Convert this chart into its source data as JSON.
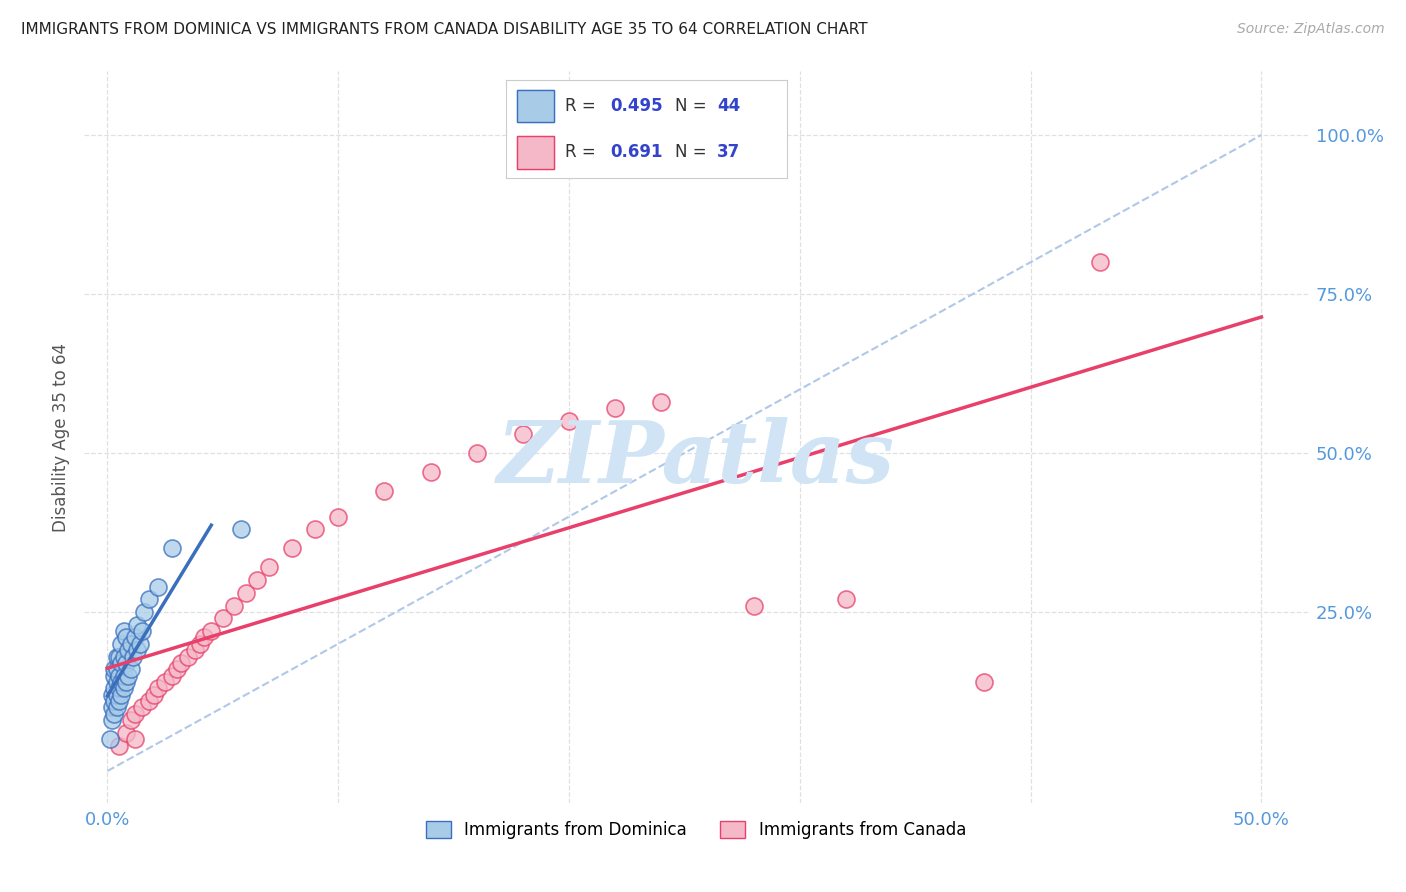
{
  "title": "IMMIGRANTS FROM DOMINICA VS IMMIGRANTS FROM CANADA DISABILITY AGE 35 TO 64 CORRELATION CHART",
  "source": "Source: ZipAtlas.com",
  "ylabel": "Disability Age 35 to 64",
  "xlim": [
    -0.01,
    0.52
  ],
  "ylim": [
    -0.05,
    1.1
  ],
  "R_dominica": 0.495,
  "N_dominica": 44,
  "R_canada": 0.691,
  "N_canada": 37,
  "color_dominica": "#a8cce8",
  "color_canada": "#f4b8c8",
  "trend_color_dominica": "#3a6fbd",
  "trend_color_canada": "#e8406a",
  "diagonal_color": "#b0c8e8",
  "background_color": "#ffffff",
  "grid_color": "#e0e0e0",
  "title_color": "#222222",
  "axis_tick_color": "#5599dd",
  "watermark_color": "#d0e4f5",
  "dominica_x": [
    0.001,
    0.002,
    0.002,
    0.002,
    0.003,
    0.003,
    0.003,
    0.003,
    0.003,
    0.004,
    0.004,
    0.004,
    0.004,
    0.004,
    0.005,
    0.005,
    0.005,
    0.005,
    0.006,
    0.006,
    0.006,
    0.006,
    0.007,
    0.007,
    0.007,
    0.007,
    0.008,
    0.008,
    0.008,
    0.009,
    0.009,
    0.01,
    0.01,
    0.011,
    0.012,
    0.013,
    0.013,
    0.014,
    0.015,
    0.016,
    0.018,
    0.022,
    0.028,
    0.058
  ],
  "dominica_y": [
    0.05,
    0.08,
    0.1,
    0.12,
    0.09,
    0.11,
    0.13,
    0.15,
    0.16,
    0.1,
    0.12,
    0.14,
    0.16,
    0.18,
    0.11,
    0.13,
    0.15,
    0.18,
    0.12,
    0.14,
    0.17,
    0.2,
    0.13,
    0.15,
    0.18,
    0.22,
    0.14,
    0.17,
    0.21,
    0.15,
    0.19,
    0.16,
    0.2,
    0.18,
    0.21,
    0.19,
    0.23,
    0.2,
    0.22,
    0.25,
    0.27,
    0.29,
    0.35,
    0.38
  ],
  "canada_x": [
    0.005,
    0.008,
    0.01,
    0.012,
    0.015,
    0.018,
    0.02,
    0.022,
    0.025,
    0.028,
    0.03,
    0.032,
    0.035,
    0.038,
    0.04,
    0.042,
    0.045,
    0.05,
    0.055,
    0.06,
    0.065,
    0.07,
    0.08,
    0.09,
    0.1,
    0.12,
    0.14,
    0.16,
    0.18,
    0.2,
    0.22,
    0.24,
    0.28,
    0.32,
    0.38,
    0.43,
    0.012
  ],
  "canada_y": [
    0.04,
    0.06,
    0.08,
    0.09,
    0.1,
    0.11,
    0.12,
    0.13,
    0.14,
    0.15,
    0.16,
    0.17,
    0.18,
    0.19,
    0.2,
    0.21,
    0.22,
    0.24,
    0.26,
    0.28,
    0.3,
    0.32,
    0.35,
    0.38,
    0.4,
    0.44,
    0.47,
    0.5,
    0.53,
    0.55,
    0.57,
    0.58,
    0.26,
    0.27,
    0.14,
    0.8,
    0.05
  ],
  "watermark": "ZIPatlas"
}
